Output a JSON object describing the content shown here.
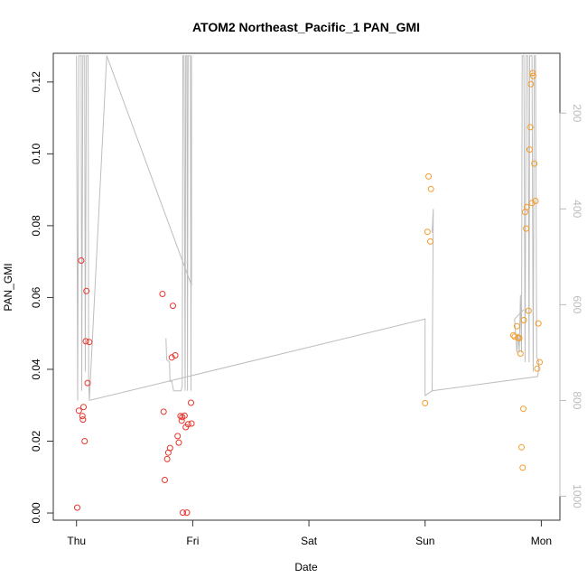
{
  "chart_data": {
    "type": "scatter",
    "title": "ATOM2 Northeast_Pacific_1 PAN_GMI",
    "xlabel": "Date",
    "ylabel": "PAN_GMI",
    "x_ticks": [
      {
        "day": 0,
        "label": "Thu"
      },
      {
        "day": 1,
        "label": "Fri"
      },
      {
        "day": 2,
        "label": "Sat"
      },
      {
        "day": 3,
        "label": "Sun"
      },
      {
        "day": 4,
        "label": "Mon"
      }
    ],
    "y_ticks": [
      {
        "value": 0.0,
        "label": "0.00"
      },
      {
        "value": 0.02,
        "label": "0.02"
      },
      {
        "value": 0.04,
        "label": "0.04"
      },
      {
        "value": 0.06,
        "label": "0.06"
      },
      {
        "value": 0.08,
        "label": "0.08"
      },
      {
        "value": 0.1,
        "label": "0.10"
      },
      {
        "value": 0.12,
        "label": "0.12"
      }
    ],
    "y2_ticks": [
      {
        "value": 200,
        "label": "200"
      },
      {
        "value": 400,
        "label": "400"
      },
      {
        "value": 600,
        "label": "600"
      },
      {
        "value": 800,
        "label": "800"
      },
      {
        "value": 1000,
        "label": "1000"
      }
    ],
    "ylim": [
      -0.002,
      0.128
    ],
    "y2lim": [
      1050,
      75
    ],
    "xlim": [
      -0.2,
      4.16
    ],
    "colors": {
      "series_red": "#e8352b",
      "series_orange": "#f39c2a",
      "altitude_line": "#bdbdbd"
    },
    "series": [
      {
        "color": "red",
        "points": [
          [
            0.006,
            0.0015
          ],
          [
            0.02,
            0.0285
          ],
          [
            0.04,
            0.0703
          ],
          [
            0.05,
            0.027
          ],
          [
            0.055,
            0.026
          ],
          [
            0.06,
            0.0295
          ],
          [
            0.07,
            0.02
          ],
          [
            0.08,
            0.0478
          ],
          [
            0.085,
            0.0618
          ],
          [
            0.095,
            0.0362
          ],
          [
            0.11,
            0.0476
          ],
          [
            0.74,
            0.061
          ],
          [
            0.75,
            0.0282
          ],
          [
            0.76,
            0.0092
          ],
          [
            0.78,
            0.015
          ],
          [
            0.79,
            0.0168
          ],
          [
            0.805,
            0.0181
          ],
          [
            0.82,
            0.0433
          ],
          [
            0.83,
            0.0577
          ],
          [
            0.85,
            0.0439
          ],
          [
            0.87,
            0.0214
          ],
          [
            0.88,
            0.0196
          ],
          [
            0.895,
            0.027
          ],
          [
            0.905,
            0.0257
          ],
          [
            0.91,
            0.0267
          ],
          [
            0.915,
            0.0001
          ],
          [
            0.93,
            0.0271
          ],
          [
            0.94,
            0.0239
          ],
          [
            0.95,
            0.0001
          ],
          [
            0.96,
            0.0247
          ],
          [
            0.985,
            0.0307
          ],
          [
            0.99,
            0.0249
          ]
        ]
      },
      {
        "color": "orange",
        "points": [
          [
            3.0,
            0.0306
          ],
          [
            3.02,
            0.0783
          ],
          [
            3.03,
            0.0937
          ],
          [
            3.045,
            0.0756
          ],
          [
            3.05,
            0.0902
          ],
          [
            3.76,
            0.0495
          ],
          [
            3.77,
            0.0491
          ],
          [
            3.79,
            0.052
          ],
          [
            3.8,
            0.0488
          ],
          [
            3.81,
            0.0487
          ],
          [
            3.82,
            0.0444
          ],
          [
            3.83,
            0.0183
          ],
          [
            3.84,
            0.0126
          ],
          [
            3.845,
            0.029
          ],
          [
            3.85,
            0.0537
          ],
          [
            3.86,
            0.0838
          ],
          [
            3.87,
            0.0792
          ],
          [
            3.875,
            0.0852
          ],
          [
            3.89,
            0.0563
          ],
          [
            3.9,
            0.1012
          ],
          [
            3.905,
            0.1074
          ],
          [
            3.91,
            0.1194
          ],
          [
            3.92,
            0.0863
          ],
          [
            3.925,
            0.1225
          ],
          [
            3.93,
            0.1217
          ],
          [
            3.94,
            0.0973
          ],
          [
            3.95,
            0.0869
          ],
          [
            3.965,
            0.0402
          ],
          [
            3.975,
            0.0528
          ],
          [
            3.985,
            0.042
          ]
        ]
      }
    ],
    "altitude_line": [
      [
        0.0,
        80
      ],
      [
        0.01,
        800
      ],
      [
        0.02,
        80
      ],
      [
        0.04,
        80
      ],
      [
        0.045,
        780
      ],
      [
        0.055,
        80
      ],
      [
        0.07,
        80
      ],
      [
        0.075,
        740
      ],
      [
        0.085,
        80
      ],
      [
        0.1,
        80
      ],
      [
        0.105,
        760
      ],
      [
        0.11,
        800
      ],
      [
        0.26,
        80
      ],
      [
        0.99,
        560
      ],
      [
        0.99,
        80
      ],
      [
        0.985,
        780
      ],
      [
        0.98,
        80
      ],
      [
        0.96,
        80
      ],
      [
        0.955,
        780
      ],
      [
        0.95,
        80
      ],
      [
        0.94,
        80
      ],
      [
        0.935,
        780
      ],
      [
        0.925,
        80
      ],
      [
        0.915,
        80
      ],
      [
        0.91,
        770
      ],
      [
        0.9,
        780
      ],
      [
        0.86,
        780
      ],
      [
        0.835,
        780
      ],
      [
        0.82,
        760
      ],
      [
        0.805,
        760
      ],
      [
        0.8,
        720
      ],
      [
        0.775,
        715
      ],
      [
        0.77,
        670
      ],
      null,
      [
        0.11,
        800
      ],
      [
        3.0,
        630
      ],
      [
        3.0,
        790
      ],
      [
        3.06,
        780
      ],
      [
        3.07,
        400
      ],
      [
        3.06,
        450
      ],
      null,
      [
        3.06,
        780
      ],
      [
        3.97,
        750
      ],
      [
        3.98,
        720
      ],
      [
        3.96,
        710
      ],
      [
        3.95,
        80
      ],
      [
        3.94,
        80
      ],
      [
        3.93,
        740
      ],
      [
        3.92,
        80
      ],
      [
        3.9,
        80
      ],
      [
        3.895,
        720
      ],
      [
        3.885,
        80
      ],
      [
        3.87,
        80
      ],
      [
        3.86,
        720
      ],
      [
        3.85,
        80
      ],
      [
        3.835,
        80
      ],
      [
        3.83,
        700
      ],
      [
        3.82,
        580
      ],
      [
        3.81,
        700
      ],
      [
        3.8,
        660
      ],
      [
        3.79,
        700
      ],
      [
        3.77,
        630
      ],
      [
        3.85,
        610
      ]
    ]
  }
}
